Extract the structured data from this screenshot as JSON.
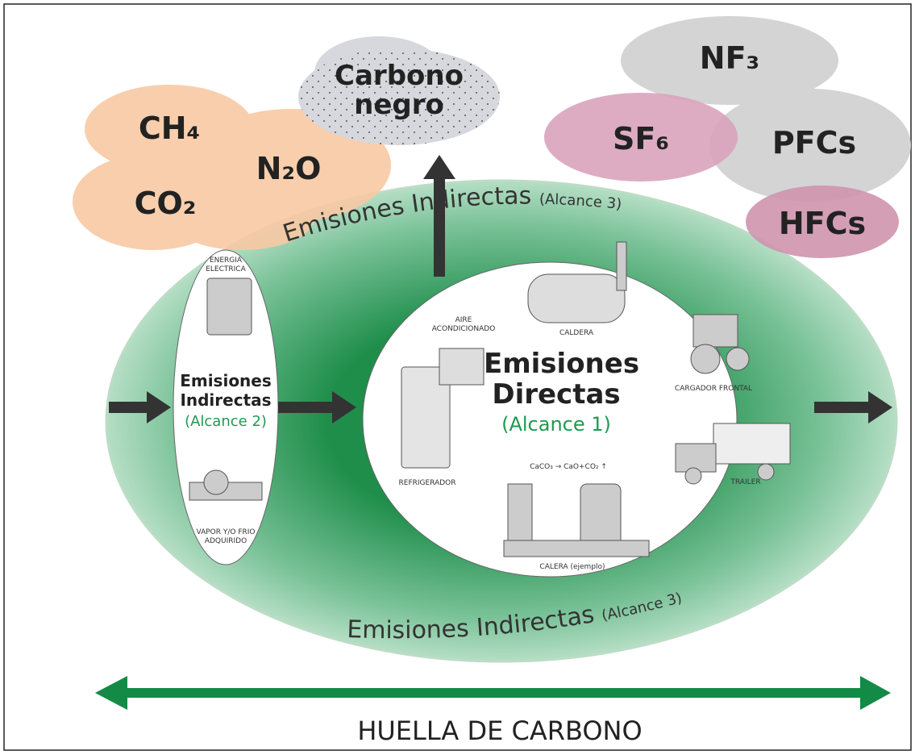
{
  "clouds": {
    "left": [
      "CH₄",
      "N₂O",
      "CO₂"
    ],
    "black_carbon": "Carbono negro",
    "right": [
      "NF₃",
      "SF₆",
      "PFCs",
      "HFCs"
    ]
  },
  "scope3": {
    "top": {
      "title": "Emisiones Indirectas",
      "scope": "(Alcance 3)"
    },
    "bottom": {
      "title": "Emisiones Indirectas",
      "scope": "(Alcance 3)"
    }
  },
  "scope2": {
    "title": "Emisiones Indirectas",
    "scope": "(Alcance 2)",
    "items": [
      "ENERGIA ELECTRICA",
      "VAPOR Y/O FRIO ADQUIRIDO"
    ]
  },
  "scope1": {
    "title": "Emisiones Directas",
    "scope": "(Alcance 1)",
    "items": [
      "AIRE ACONDICIONADO",
      "CALDERA",
      "CARGADOR FRONTAL",
      "REFRIGERADOR",
      "TRAILER",
      "CALERA (ejemplo)"
    ],
    "formula": "CaCO₃ → CaO+CO₂ ↑"
  },
  "footer": {
    "label": "HUELLA DE CARBONO"
  }
}
